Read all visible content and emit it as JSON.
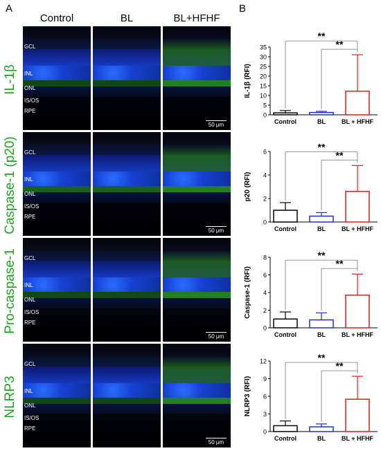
{
  "panel_a_label": "A",
  "panel_b_label": "B",
  "columns": [
    "Control",
    "BL",
    "BL+HFHF"
  ],
  "rows": [
    "IL-1β",
    "Caspase-1 (p20)",
    "Pro-caspase-1",
    "NLRP3"
  ],
  "layer_labels": [
    "GCL",
    "INL",
    "ONL",
    "IS/OS",
    "RPE"
  ],
  "scale_bar": "50 μm",
  "significance": "**",
  "colors": {
    "control": "#000000",
    "bl": "#1f2dd6",
    "blhfhf": "#e01b1b",
    "row_label": "#1fa31f"
  },
  "chart_data": [
    {
      "type": "bar",
      "ylabel": "IL-1β (RFI)",
      "categories": [
        "Control",
        "BL",
        "BL + HFHF"
      ],
      "values": [
        1,
        1.2,
        12.2
      ],
      "errors": [
        1.2,
        0.6,
        18.8
      ],
      "ylim": [
        0,
        35
      ],
      "yticks": [
        "0",
        "5",
        "10",
        "15",
        "20",
        "25",
        "30",
        "35"
      ]
    },
    {
      "type": "bar",
      "ylabel": "p20 (RFI)",
      "categories": [
        "Control",
        "BL",
        "BL + HFHF"
      ],
      "values": [
        1,
        0.5,
        2.6
      ],
      "errors": [
        0.65,
        0.3,
        2.2
      ],
      "ylim": [
        0,
        6
      ],
      "yticks": [
        "0",
        "2",
        "4",
        "6"
      ]
    },
    {
      "type": "bar",
      "ylabel": "Caspase-1 (RFI)",
      "categories": [
        "Control",
        "BL",
        "BL + HFHF"
      ],
      "values": [
        1,
        0.9,
        3.7
      ],
      "errors": [
        0.8,
        0.8,
        2.4
      ],
      "ylim": [
        0,
        8
      ],
      "yticks": [
        "0",
        "2",
        "4",
        "6",
        "8"
      ]
    },
    {
      "type": "bar",
      "ylabel": "NLRP3 (RFI)",
      "categories": [
        "Control",
        "BL",
        "BL + HFHF"
      ],
      "values": [
        1,
        0.8,
        5.5
      ],
      "errors": [
        0.8,
        0.5,
        3.9
      ],
      "ylim": [
        0,
        12
      ],
      "yticks": [
        "0",
        "3",
        "6",
        "9",
        "12"
      ]
    }
  ]
}
